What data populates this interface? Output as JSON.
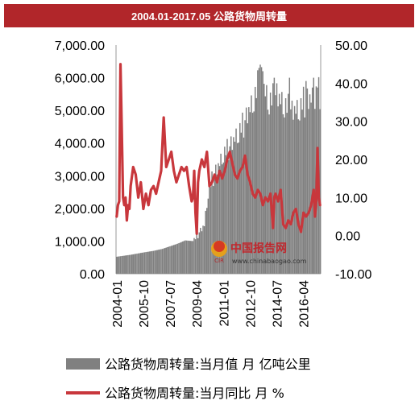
{
  "title": "2004.01-2017.05 公路货物周转量",
  "watermark": {
    "logo_text": "CIR",
    "name": "中国报告网",
    "url": "www.chinabaogao.com"
  },
  "legend": [
    {
      "label": "公路货物周转量:当月值  月 亿吨公里",
      "color": "#808080"
    },
    {
      "label": "公路货物周转量:当月同比  月 %",
      "color": "#c8373c"
    }
  ],
  "chart_data": {
    "type": "bar+line",
    "x_ticks": [
      "2004-01",
      "2005-10",
      "2007-07",
      "2009-04",
      "2011-01",
      "2012-10",
      "2014-07",
      "2016-04"
    ],
    "y_left": {
      "ticks": [
        "0.00",
        "1,000.00",
        "2,000.00",
        "3,000.00",
        "4,000.00",
        "5,000.00",
        "6,000.00",
        "7,000.00"
      ],
      "range": [
        0,
        7000
      ]
    },
    "y_right": {
      "ticks": [
        "-10.00",
        "0.00",
        "10.00",
        "20.00",
        "30.00",
        "40.00",
        "50.00"
      ],
      "range": [
        -10,
        50
      ]
    },
    "bar_anchors": [
      [
        "2004-01",
        520
      ],
      [
        "2004-12",
        580
      ],
      [
        "2005-10",
        650
      ],
      [
        "2006-06",
        700
      ],
      [
        "2007-01",
        760
      ],
      [
        "2007-07",
        840
      ],
      [
        "2008-01",
        920
      ],
      [
        "2008-07",
        1020
      ],
      [
        "2009-01",
        1000
      ],
      [
        "2009-04",
        1150
      ],
      [
        "2009-10",
        1500
      ],
      [
        "2010-01",
        2500
      ],
      [
        "2010-04",
        2900
      ],
      [
        "2010-10",
        3400
      ],
      [
        "2011-01",
        3700
      ],
      [
        "2011-06",
        3900
      ],
      [
        "2011-12",
        4300
      ],
      [
        "2012-06",
        4700
      ],
      [
        "2012-10",
        5100
      ],
      [
        "2013-03",
        5600
      ],
      [
        "2013-06",
        6100
      ],
      [
        "2013-09",
        5700
      ],
      [
        "2014-01",
        5300
      ],
      [
        "2014-07",
        5500
      ],
      [
        "2015-01",
        5200
      ],
      [
        "2015-07",
        5000
      ],
      [
        "2016-01",
        5100
      ],
      [
        "2016-04",
        5300
      ],
      [
        "2016-10",
        5400
      ],
      [
        "2017-05",
        5600
      ]
    ],
    "bar_peaks": [
      [
        "2013-05",
        6300
      ],
      [
        "2013-06",
        6400
      ],
      [
        "2013-08",
        6200
      ],
      [
        "2014-05",
        6000
      ],
      [
        "2015-05",
        6000
      ],
      [
        "2016-06",
        5900
      ],
      [
        "2016-12",
        6000
      ],
      [
        "2017-03",
        5700
      ]
    ],
    "line_points": [
      [
        "2004-01",
        5.0
      ],
      [
        "2004-02",
        8.0
      ],
      [
        "2004-03",
        9.0
      ],
      [
        "2004-04",
        45.0
      ],
      [
        "2004-05",
        28.0
      ],
      [
        "2004-06",
        10.0
      ],
      [
        "2004-07",
        8.0
      ],
      [
        "2004-08",
        10.0
      ],
      [
        "2004-09",
        4.0
      ],
      [
        "2004-10",
        8.0
      ],
      [
        "2004-11",
        7.0
      ],
      [
        "2004-12",
        13.0
      ],
      [
        "2005-02",
        18.0
      ],
      [
        "2005-04",
        16.0
      ],
      [
        "2005-06",
        10.0
      ],
      [
        "2005-08",
        14.0
      ],
      [
        "2005-10",
        7.0
      ],
      [
        "2005-12",
        11.0
      ],
      [
        "2006-02",
        8.0
      ],
      [
        "2006-04",
        12.0
      ],
      [
        "2006-06",
        13.0
      ],
      [
        "2006-08",
        11.0
      ],
      [
        "2006-10",
        14.0
      ],
      [
        "2006-12",
        17.0
      ],
      [
        "2007-02",
        31.0
      ],
      [
        "2007-04",
        18.0
      ],
      [
        "2007-06",
        20.0
      ],
      [
        "2007-08",
        22.0
      ],
      [
        "2007-10",
        17.0
      ],
      [
        "2007-12",
        14.0
      ],
      [
        "2008-02",
        16.0
      ],
      [
        "2008-04",
        18.0
      ],
      [
        "2008-06",
        17.0
      ],
      [
        "2008-08",
        18.0
      ],
      [
        "2008-10",
        13.0
      ],
      [
        "2008-12",
        9.0
      ],
      [
        "2009-01",
        10.0
      ],
      [
        "2009-02",
        17.0
      ],
      [
        "2009-03",
        6.0
      ],
      [
        "2009-04",
        0.5
      ],
      [
        "2009-05",
        14.0
      ],
      [
        "2009-06",
        17.0
      ],
      [
        "2009-08",
        20.0
      ],
      [
        "2009-10",
        18.0
      ],
      [
        "2009-12",
        22.0
      ],
      [
        "2010-02",
        13.0
      ],
      [
        "2010-04",
        14.0
      ],
      [
        "2010-06",
        16.0
      ],
      [
        "2010-08",
        14.0
      ],
      [
        "2010-10",
        17.0
      ],
      [
        "2010-12",
        15.0
      ],
      [
        "2011-02",
        17.0
      ],
      [
        "2011-04",
        20.0
      ],
      [
        "2011-06",
        22.0
      ],
      [
        "2011-08",
        19.0
      ],
      [
        "2011-10",
        16.0
      ],
      [
        "2011-12",
        15.0
      ],
      [
        "2012-02",
        17.0
      ],
      [
        "2012-04",
        18.0
      ],
      [
        "2012-06",
        21.0
      ],
      [
        "2012-08",
        16.0
      ],
      [
        "2012-10",
        14.0
      ],
      [
        "2012-12",
        11.0
      ],
      [
        "2013-02",
        10.0
      ],
      [
        "2013-04",
        12.0
      ],
      [
        "2013-06",
        11.0
      ],
      [
        "2013-08",
        8.0
      ],
      [
        "2013-10",
        10.0
      ],
      [
        "2013-12",
        9.0
      ],
      [
        "2014-02",
        11.0
      ],
      [
        "2014-04",
        2.0
      ],
      [
        "2014-05",
        10.0
      ],
      [
        "2014-06",
        11.0
      ],
      [
        "2014-08",
        9.0
      ],
      [
        "2014-10",
        12.0
      ],
      [
        "2014-12",
        3.0
      ],
      [
        "2015-02",
        2.0
      ],
      [
        "2015-04",
        4.0
      ],
      [
        "2015-06",
        3.0
      ],
      [
        "2015-08",
        6.0
      ],
      [
        "2015-10",
        7.0
      ],
      [
        "2015-12",
        3.0
      ],
      [
        "2016-02",
        1.0
      ],
      [
        "2016-04",
        6.0
      ],
      [
        "2016-06",
        5.0
      ],
      [
        "2016-08",
        6.0
      ],
      [
        "2016-10",
        8.0
      ],
      [
        "2016-12",
        12.0
      ],
      [
        "2017-01",
        5.0
      ],
      [
        "2017-02",
        9.0
      ],
      [
        "2017-03",
        23.0
      ],
      [
        "2017-04",
        10.0
      ],
      [
        "2017-05",
        8.0
      ]
    ]
  }
}
